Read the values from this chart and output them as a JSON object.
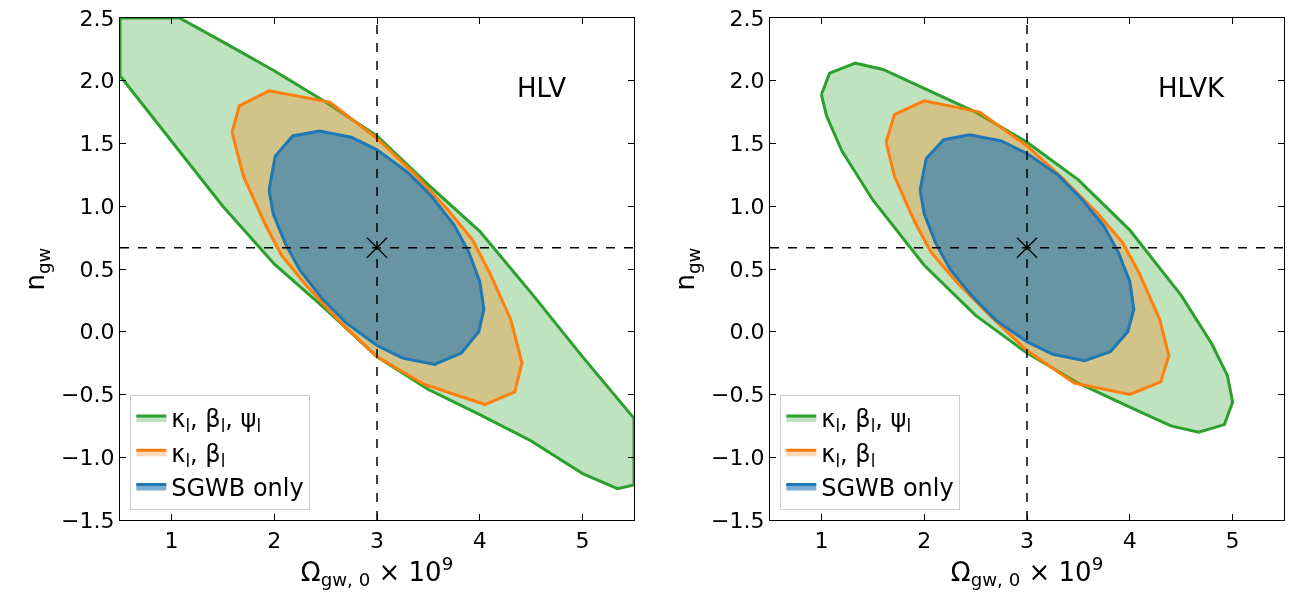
{
  "chart_data": [
    {
      "type": "area",
      "annotations": [
        "HLV"
      ],
      "xlabel": "Ω$_{gw, 0}$ × 10$^{9}$",
      "ylabel": "n$_{gw}$",
      "xlim": [
        0.5,
        5.5
      ],
      "ylim": [
        -1.5,
        2.5
      ],
      "xticks": [
        1,
        2,
        3,
        4,
        5
      ],
      "yticks": [
        {
          "value": -1.5,
          "label": "−1.5"
        },
        {
          "value": -1,
          "label": "−1.0"
        },
        {
          "value": -0.5,
          "label": "−0.5"
        },
        {
          "value": 0,
          "label": "0.0"
        },
        {
          "value": 0.5,
          "label": "0.5"
        },
        {
          "value": 1,
          "label": "1.0"
        },
        {
          "value": 1.5,
          "label": "1.5"
        },
        {
          "value": 2,
          "label": "2.0"
        },
        {
          "value": 2.5,
          "label": "2.5"
        }
      ],
      "grid": false,
      "legend": "bottom left",
      "line_style": "solid",
      "ref_lines": [
        {
          "axis": "x",
          "value": 3,
          "color": "#000000",
          "line_style": "dashed"
        },
        {
          "axis": "y",
          "value": 0.67,
          "color": "#000000",
          "line_style": "dashed"
        }
      ],
      "series": [
        {
          "name": "κ$_{l}$, β$_{l}$, ψ$_{l}$",
          "color": "#2ca02c",
          "x": [
            0.5,
            1.08,
            1.5,
            2.0,
            2.5,
            3.0,
            3.5,
            4.0,
            4.5,
            5.0,
            5.5,
            5.5,
            5.34,
            5.0,
            4.5,
            4.0,
            3.5,
            3.0,
            2.5,
            2.0,
            1.5,
            1.0,
            0.5,
            0.5
          ],
          "values": [
            2.5,
            2.5,
            2.31,
            2.08,
            1.83,
            1.56,
            1.17,
            0.8,
            0.31,
            -0.2,
            -0.69,
            -1.22,
            -1.25,
            -1.13,
            -0.87,
            -0.66,
            -0.46,
            -0.2,
            0.18,
            0.54,
            1.0,
            1.52,
            2.04,
            2.5
          ]
        },
        {
          "name": "κ$_{l}$, β$_{l}$",
          "color": "#ff7f0e",
          "x": [
            1.59,
            1.66,
            1.95,
            2.54,
            3.0,
            3.35,
            3.69,
            3.93,
            4.09,
            4.3,
            4.41,
            4.34,
            4.05,
            3.46,
            3.0,
            2.65,
            2.31,
            2.07,
            1.91,
            1.7,
            1.59
          ],
          "values": [
            1.59,
            1.8,
            1.92,
            1.83,
            1.54,
            1.27,
            0.97,
            0.73,
            0.48,
            0.1,
            -0.25,
            -0.48,
            -0.58,
            -0.42,
            -0.2,
            0.07,
            0.37,
            0.61,
            0.86,
            1.24,
            1.59
          ]
        },
        {
          "name": "SGWB only",
          "color": "#1f77b4",
          "x": [
            1.95,
            2.01,
            2.18,
            2.44,
            2.75,
            3.0,
            3.3,
            3.53,
            3.75,
            3.89,
            4.0,
            4.04,
            3.99,
            3.82,
            3.56,
            3.25,
            3.0,
            2.7,
            2.47,
            2.25,
            2.11,
            1.99,
            1.95
          ],
          "values": [
            1.13,
            1.4,
            1.56,
            1.6,
            1.55,
            1.45,
            1.27,
            1.08,
            0.85,
            0.64,
            0.4,
            0.18,
            0.0,
            -0.17,
            -0.26,
            -0.21,
            -0.11,
            0.07,
            0.26,
            0.49,
            0.7,
            0.94,
            1.13
          ]
        },
        {
          "type": "scatter",
          "marker": "cross",
          "color": "#000000",
          "x": [
            3
          ],
          "values": [
            0.67
          ]
        }
      ]
    },
    {
      "type": "area",
      "annotations": [
        "HLVK"
      ],
      "xlabel": "Ω$_{gw, 0}$ × 10$^{9}$",
      "ylabel": "n$_{gw}$",
      "xlim": [
        0.5,
        5.5
      ],
      "ylim": [
        -1.5,
        2.5
      ],
      "xticks": [
        1,
        2,
        3,
        4,
        5
      ],
      "yticks": [
        {
          "value": -1.5,
          "label": "−1.5"
        },
        {
          "value": -1,
          "label": "−1.0"
        },
        {
          "value": -0.5,
          "label": "−0.5"
        },
        {
          "value": 0,
          "label": "0.0"
        },
        {
          "value": 0.5,
          "label": "0.5"
        },
        {
          "value": 1,
          "label": "1.0"
        },
        {
          "value": 1.5,
          "label": "1.5"
        },
        {
          "value": 2,
          "label": "2.0"
        },
        {
          "value": 2.5,
          "label": "2.5"
        }
      ],
      "grid": false,
      "legend": "bottom left",
      "line_style": "solid",
      "ref_lines": [
        {
          "axis": "x",
          "value": 3,
          "color": "#000000",
          "line_style": "dashed"
        },
        {
          "axis": "y",
          "value": 0.67,
          "color": "#000000",
          "line_style": "dashed"
        }
      ],
      "series": [
        {
          "name": "κ$_{l}$, β$_{l}$, ψ$_{l}$",
          "color": "#2ca02c",
          "x": [
            1.0,
            1.08,
            1.33,
            1.6,
            2.0,
            2.5,
            3.0,
            3.5,
            4.0,
            4.5,
            4.8,
            4.95,
            5.0,
            4.92,
            4.67,
            4.4,
            4.0,
            3.5,
            3.0,
            2.5,
            2.0,
            1.5,
            1.2,
            1.05,
            1.0
          ],
          "values": [
            1.89,
            2.06,
            2.14,
            2.09,
            1.94,
            1.75,
            1.51,
            1.21,
            0.81,
            0.29,
            -0.1,
            -0.35,
            -0.56,
            -0.74,
            -0.8,
            -0.75,
            -0.6,
            -0.41,
            -0.17,
            0.13,
            0.53,
            1.05,
            1.44,
            1.72,
            1.89
          ]
        },
        {
          "name": "κ$_{l}$, β$_{l}$",
          "color": "#ff7f0e",
          "x": [
            1.63,
            1.71,
            2.0,
            2.54,
            3.0,
            3.35,
            3.69,
            3.93,
            4.09,
            4.29,
            4.38,
            4.3,
            4.0,
            3.46,
            3.0,
            2.65,
            2.31,
            2.07,
            1.91,
            1.71,
            1.63
          ],
          "values": [
            1.51,
            1.73,
            1.84,
            1.75,
            1.48,
            1.22,
            0.94,
            0.71,
            0.47,
            0.1,
            -0.19,
            -0.4,
            -0.5,
            -0.41,
            -0.15,
            0.12,
            0.4,
            0.63,
            0.87,
            1.24,
            1.51
          ]
        },
        {
          "name": "SGWB only",
          "color": "#1f77b4",
          "x": [
            1.96,
            2.02,
            2.19,
            2.44,
            2.75,
            3.0,
            3.3,
            3.53,
            3.75,
            3.89,
            4.0,
            4.04,
            3.98,
            3.81,
            3.56,
            3.25,
            3.0,
            2.7,
            2.47,
            2.25,
            2.11,
            2.0,
            1.96
          ],
          "values": [
            1.13,
            1.38,
            1.53,
            1.57,
            1.52,
            1.42,
            1.25,
            1.06,
            0.84,
            0.63,
            0.4,
            0.18,
            0.0,
            -0.16,
            -0.23,
            -0.18,
            -0.08,
            0.09,
            0.28,
            0.5,
            0.71,
            0.94,
            1.13
          ]
        },
        {
          "type": "scatter",
          "marker": "cross",
          "color": "#000000",
          "x": [
            3
          ],
          "values": [
            0.67
          ]
        }
      ]
    }
  ]
}
